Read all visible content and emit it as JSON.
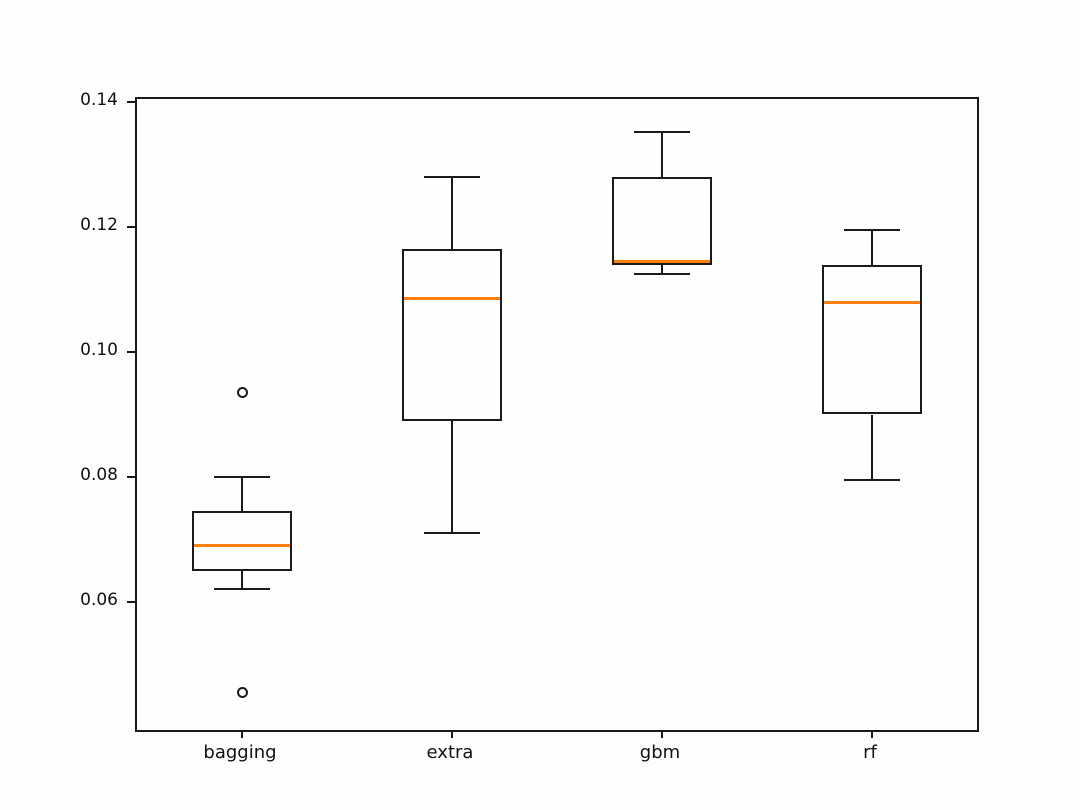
{
  "chart_data": {
    "type": "box",
    "title": "",
    "xlabel": "",
    "ylabel": "",
    "grid": false,
    "legend": null,
    "categories": [
      "bagging",
      "extra",
      "gbm",
      "rf"
    ],
    "ylim": [
      0.0395,
      0.1405
    ],
    "yticks": [
      {
        "value": 0.06,
        "label": "0.06"
      },
      {
        "value": 0.08,
        "label": "0.08"
      },
      {
        "value": 0.1,
        "label": "0.10"
      },
      {
        "value": 0.12,
        "label": "0.12"
      },
      {
        "value": 0.14,
        "label": "0.14"
      }
    ],
    "boxes": [
      {
        "category": "bagging",
        "whislo": 0.062,
        "q1": 0.065,
        "med": 0.069,
        "q3": 0.0745,
        "whishi": 0.08,
        "fliers": [
          0.0935,
          0.0455
        ]
      },
      {
        "category": "extra",
        "whislo": 0.071,
        "q1": 0.089,
        "med": 0.1085,
        "q3": 0.1165,
        "whishi": 0.128,
        "fliers": []
      },
      {
        "category": "gbm",
        "whislo": 0.1125,
        "q1": 0.114,
        "med": 0.1145,
        "q3": 0.128,
        "whishi": 0.1352,
        "fliers": []
      },
      {
        "category": "rf",
        "whislo": 0.0795,
        "q1": 0.09,
        "med": 0.108,
        "q3": 0.114,
        "whishi": 0.1195,
        "fliers": []
      }
    ],
    "colors": {
      "box_edge": "#1a1a1a",
      "median": "#ff7f0e",
      "background": "#fdfdfb"
    }
  }
}
